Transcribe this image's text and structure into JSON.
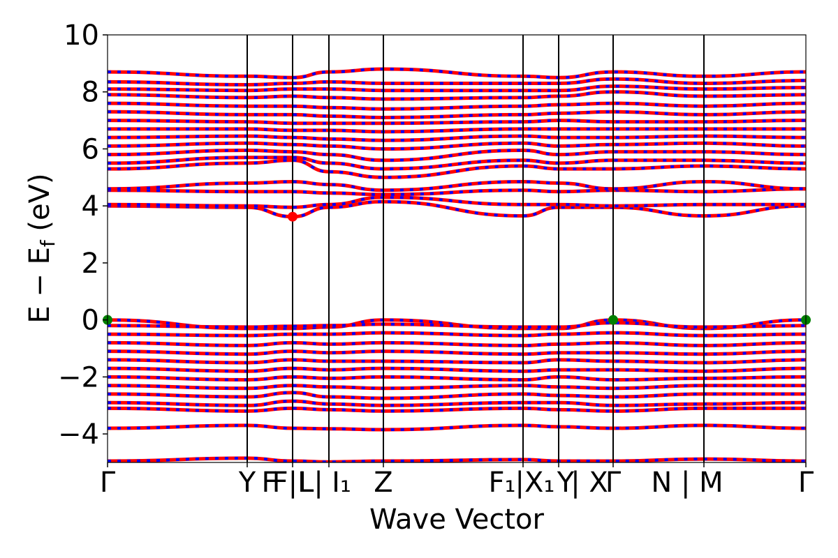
{
  "chart_data": {
    "type": "line",
    "title": "",
    "xlabel": "Wave Vector",
    "ylabel": "E − E_f (eV)",
    "ylabel_parts": {
      "main": "E − E",
      "sub": "f",
      "tail": " (eV)"
    },
    "ylim": [
      -5,
      10
    ],
    "yticks": [
      -4,
      -2,
      0,
      2,
      4,
      6,
      8,
      10
    ],
    "ytick_labels": [
      "−4",
      "−2",
      "0",
      "2",
      "4",
      "6",
      "8",
      "10"
    ],
    "grid": false,
    "legend": "none",
    "kpath": {
      "x_range": [
        0,
        1
      ],
      "segment_positions": [
        0,
        0.2,
        0.265,
        0.317,
        0.395,
        0.595,
        0.646,
        0.724,
        0.854,
        1
      ],
      "labels": [
        {
          "x": 0,
          "text": "Γ"
        },
        {
          "x": 0.2,
          "text": "Y"
        },
        {
          "x": 0.232,
          "text": "F"
        },
        {
          "x": 0.265,
          "text": "F|L"
        },
        {
          "x": 0.291,
          "text": "L|"
        },
        {
          "x": 0.335,
          "text": "I₁"
        },
        {
          "x": 0.395,
          "text": "Z"
        },
        {
          "x": 0.565,
          "text": "F₁"
        },
        {
          "x": 0.612,
          "text": "|X₁"
        },
        {
          "x": 0.656,
          "text": "Y"
        },
        {
          "x": 0.69,
          "text": "| X"
        },
        {
          "x": 0.724,
          "text": "Γ"
        },
        {
          "x": 0.83,
          "text": "N | M"
        },
        {
          "x": 1,
          "text": "Γ"
        }
      ]
    },
    "series": [
      {
        "color": "#ff0000",
        "style": "solid"
      },
      {
        "color": "#0000ff",
        "style": "dashed"
      }
    ],
    "bands": [
      {
        "energies": [
          -4.95,
          -4.85,
          -4.95,
          -4.98,
          -4.95,
          -4.9,
          -4.95,
          -4.95,
          -4.88,
          -4.95
        ]
      },
      {
        "energies": [
          -3.8,
          -3.7,
          -3.8,
          -3.82,
          -3.85,
          -3.7,
          -3.75,
          -3.8,
          -3.7,
          -3.8
        ]
      },
      {
        "energies": [
          -3.1,
          -3.2,
          -3.1,
          -3.15,
          -3.2,
          -3.1,
          -3.15,
          -3.2,
          -3.1,
          -3.1
        ]
      },
      {
        "energies": [
          -2.9,
          -3.0,
          -2.85,
          -2.95,
          -3.0,
          -2.9,
          -2.9,
          -3.0,
          -2.95,
          -2.9
        ]
      },
      {
        "energies": [
          -2.6,
          -2.7,
          -2.55,
          -2.7,
          -2.75,
          -2.6,
          -2.65,
          -2.7,
          -2.6,
          -2.6
        ]
      },
      {
        "energies": [
          -2.3,
          -2.4,
          -2.3,
          -2.35,
          -2.4,
          -2.3,
          -2.35,
          -2.4,
          -2.3,
          -2.3
        ]
      },
      {
        "energies": [
          -2.0,
          -2.1,
          -2.0,
          -2.05,
          -2.0,
          -2.1,
          -2.0,
          -2.1,
          -2.05,
          -2.0
        ]
      },
      {
        "energies": [
          -1.7,
          -1.8,
          -1.7,
          -1.75,
          -1.7,
          -1.8,
          -1.75,
          -1.75,
          -1.8,
          -1.7
        ]
      },
      {
        "energies": [
          -1.4,
          -1.5,
          -1.4,
          -1.45,
          -1.45,
          -1.5,
          -1.4,
          -1.45,
          -1.5,
          -1.4
        ]
      },
      {
        "energies": [
          -1.1,
          -1.2,
          -1.1,
          -1.15,
          -1.1,
          -1.2,
          -1.15,
          -1.15,
          -1.2,
          -1.1
        ]
      },
      {
        "energies": [
          -0.8,
          -0.9,
          -0.8,
          -0.85,
          -0.8,
          -0.9,
          -0.85,
          -0.8,
          -0.9,
          -0.8
        ]
      },
      {
        "energies": [
          -0.5,
          -0.55,
          -0.5,
          -0.5,
          -0.45,
          -0.55,
          -0.5,
          -0.45,
          -0.55,
          -0.5
        ]
      },
      {
        "energies": [
          0.0,
          -0.3,
          -0.3,
          -0.25,
          0.0,
          -0.3,
          -0.3,
          0.0,
          -0.3,
          0.0
        ]
      },
      {
        "energies": [
          -0.2,
          -0.25,
          -0.22,
          -0.2,
          -0.15,
          -0.25,
          -0.25,
          -0.1,
          -0.25,
          -0.2
        ]
      },
      {
        "energies": [
          4.0,
          3.95,
          3.62,
          3.95,
          4.15,
          3.65,
          3.95,
          3.95,
          3.65,
          4.0
        ]
      },
      {
        "energies": [
          4.05,
          4.0,
          3.95,
          4.05,
          4.3,
          4.05,
          4.05,
          4.0,
          4.05,
          4.05
        ]
      },
      {
        "energies": [
          4.55,
          4.5,
          4.5,
          4.45,
          4.4,
          4.55,
          4.5,
          4.55,
          4.5,
          4.6
        ]
      },
      {
        "energies": [
          4.6,
          4.8,
          4.85,
          4.75,
          4.55,
          4.85,
          4.8,
          4.6,
          4.85,
          4.6
        ]
      },
      {
        "energies": [
          5.3,
          5.5,
          5.6,
          5.2,
          5.0,
          5.4,
          5.3,
          5.3,
          5.4,
          5.3
        ]
      },
      {
        "energies": [
          5.5,
          5.7,
          5.7,
          5.5,
          5.3,
          5.6,
          5.5,
          5.6,
          5.6,
          5.5
        ]
      },
      {
        "energies": [
          5.8,
          5.95,
          5.9,
          5.8,
          5.6,
          5.95,
          5.8,
          5.9,
          5.9,
          5.8
        ]
      },
      {
        "energies": [
          6.1,
          6.2,
          6.15,
          6.1,
          6.0,
          6.2,
          6.1,
          6.15,
          6.2,
          6.1
        ]
      },
      {
        "energies": [
          6.4,
          6.45,
          6.4,
          6.35,
          6.3,
          6.45,
          6.4,
          6.4,
          6.45,
          6.4
        ]
      },
      {
        "energies": [
          6.7,
          6.7,
          6.65,
          6.65,
          6.6,
          6.7,
          6.7,
          6.7,
          6.7,
          6.7
        ]
      },
      {
        "energies": [
          7.0,
          6.95,
          6.9,
          6.9,
          6.9,
          6.95,
          7.0,
          6.95,
          6.95,
          7.0
        ]
      },
      {
        "energies": [
          7.3,
          7.2,
          7.2,
          7.15,
          7.1,
          7.2,
          7.25,
          7.3,
          7.2,
          7.3
        ]
      },
      {
        "energies": [
          7.6,
          7.5,
          7.5,
          7.45,
          7.4,
          7.5,
          7.55,
          7.6,
          7.5,
          7.6
        ]
      },
      {
        "energies": [
          7.9,
          7.8,
          7.85,
          7.8,
          7.75,
          7.8,
          7.85,
          8.0,
          7.85,
          7.9
        ]
      },
      {
        "energies": [
          8.1,
          8.05,
          8.1,
          8.1,
          8.05,
          8.05,
          8.05,
          8.2,
          8.1,
          8.15
        ]
      },
      {
        "energies": [
          8.35,
          8.25,
          8.3,
          8.35,
          8.3,
          8.3,
          8.3,
          8.45,
          8.3,
          8.4
        ]
      },
      {
        "energies": [
          8.7,
          8.55,
          8.5,
          8.7,
          8.8,
          8.55,
          8.5,
          8.7,
          8.55,
          8.7
        ]
      }
    ],
    "markers": [
      {
        "x": 0,
        "y": 0,
        "color": "#008000",
        "label": "VBM"
      },
      {
        "x": 0.724,
        "y": 0,
        "color": "#008000",
        "label": "VBM"
      },
      {
        "x": 1,
        "y": 0,
        "color": "#008000",
        "label": "VBM"
      },
      {
        "x": 0.265,
        "y": 3.62,
        "color": "#ff0000",
        "label": "CBM"
      }
    ]
  }
}
